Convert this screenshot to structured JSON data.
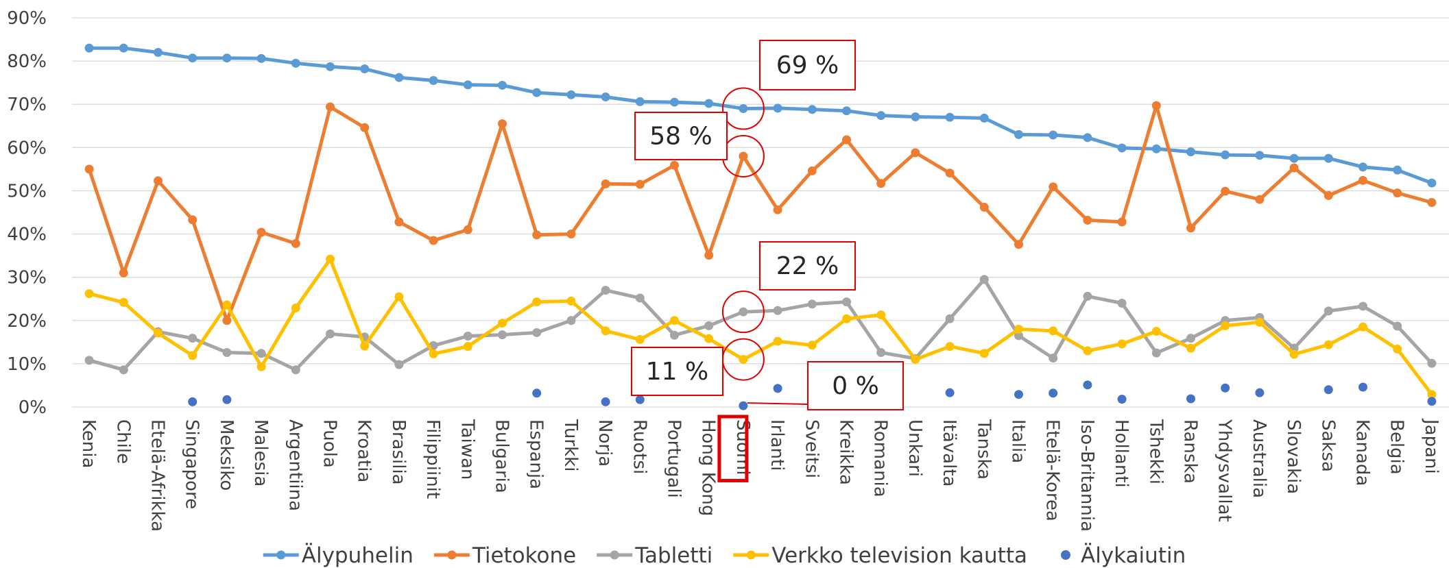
{
  "chart_data": {
    "type": "line",
    "categories": [
      "Kenia",
      "Chile",
      "Etelä-Afrikka",
      "Singapore",
      "Meksiko",
      "Malesia",
      "Argentiina",
      "Puola",
      "Kroatia",
      "Brasilia",
      "Filippiinit",
      "Taiwan",
      "Bulgaria",
      "Espanja",
      "Turkki",
      "Norja",
      "Ruotsi",
      "Portugali",
      "Hong Kong",
      "Suomi",
      "Irlanti",
      "Sveitsi",
      "Kreikka",
      "Romania",
      "Unkari",
      "Itävalta",
      "Tanska",
      "Italia",
      "Etelä-Korea",
      "Iso-Britannia",
      "Hollanti",
      "Tshekki",
      "Ranska",
      "Yhdysvallat",
      "Australia",
      "Slovakia",
      "Saksa",
      "Kanada",
      "Belgia",
      "Japani"
    ],
    "series": [
      {
        "name": "Älypuhelin",
        "color": "#5b9bd5",
        "type": "line",
        "values": [
          83,
          83,
          82,
          80.7,
          80.7,
          80.6,
          79.5,
          78.7,
          78.2,
          76.2,
          75.5,
          74.5,
          74.4,
          72.7,
          72.2,
          71.7,
          70.6,
          70.5,
          70.2,
          69,
          69.1,
          68.8,
          68.5,
          67.4,
          67.1,
          67,
          66.8,
          63,
          62.9,
          62.3,
          59.9,
          59.7,
          59,
          58.3,
          58.2,
          57.5,
          57.5,
          55.5,
          54.8,
          51.8
        ]
      },
      {
        "name": "Tietokone",
        "color": "#ed7d31",
        "type": "line",
        "values": [
          55,
          31,
          52.3,
          43.3,
          20,
          40.4,
          37.8,
          69.4,
          64.6,
          42.8,
          38.5,
          41,
          65.5,
          39.8,
          40,
          51.6,
          51.5,
          55.9,
          35.1,
          58,
          45.6,
          54.6,
          61.8,
          51.7,
          58.8,
          54.1,
          46.2,
          37.6,
          50.9,
          43.2,
          42.8,
          69.7,
          41.4,
          49.9,
          48,
          55.3,
          48.9,
          52.4,
          49.5,
          47.3
        ]
      },
      {
        "name": "Tabletti",
        "color": "#a5a5a5",
        "type": "line",
        "values": [
          10.8,
          8.6,
          17.4,
          15.9,
          12.6,
          12.4,
          8.6,
          16.9,
          16.2,
          9.8,
          14.2,
          16.4,
          16.7,
          17.2,
          20,
          27,
          25.2,
          16.6,
          18.8,
          22,
          22.3,
          23.8,
          24.3,
          12.6,
          11.2,
          20.4,
          29.5,
          16.5,
          11.3,
          25.6,
          24,
          12.5,
          15.9,
          20,
          20.7,
          13.6,
          22.2,
          23.3,
          18.7,
          10.1
        ]
      },
      {
        "name": "Verkko television kautta",
        "color": "#ffc000",
        "type": "line",
        "values": [
          26.2,
          24.2,
          17.1,
          11.9,
          23.6,
          9.3,
          22.9,
          34.2,
          14.1,
          25.5,
          12.3,
          14,
          19.4,
          24.3,
          24.5,
          17.6,
          15.6,
          20,
          15.8,
          11,
          15.2,
          14.3,
          20.4,
          21.3,
          11,
          14,
          12.4,
          18,
          17.6,
          13,
          14.6,
          17.5,
          13.6,
          18.8,
          19.6,
          12.2,
          14.4,
          18.5,
          13.4,
          2.9
        ]
      },
      {
        "name": "Älykaiutin",
        "color": "#4472c4",
        "type": "scatter",
        "values": [
          null,
          null,
          null,
          1.2,
          1.7,
          null,
          null,
          null,
          null,
          null,
          null,
          null,
          null,
          3.2,
          null,
          1.2,
          1.7,
          null,
          null,
          0.3,
          4.3,
          null,
          null,
          null,
          null,
          3.3,
          null,
          2.9,
          3.2,
          5.1,
          1.8,
          null,
          1.9,
          4.4,
          3.3,
          null,
          4.0,
          4.6,
          null,
          1.3
        ]
      }
    ],
    "ylim": [
      0,
      90
    ],
    "yticks": [
      {
        "value": 0,
        "label": "0%"
      },
      {
        "value": 10,
        "label": "10%"
      },
      {
        "value": 20,
        "label": "20%"
      },
      {
        "value": 30,
        "label": "30%"
      },
      {
        "value": 40,
        "label": "40%"
      },
      {
        "value": 50,
        "label": "50%"
      },
      {
        "value": 60,
        "label": "60%"
      },
      {
        "value": 70,
        "label": "70%"
      },
      {
        "value": 80,
        "label": "80%"
      },
      {
        "value": 90,
        "label": "90%"
      }
    ],
    "grid": true,
    "legend": "bottom",
    "annotations": [
      "69 %",
      "58 %",
      "22 %",
      "11 %",
      "0 %"
    ]
  }
}
